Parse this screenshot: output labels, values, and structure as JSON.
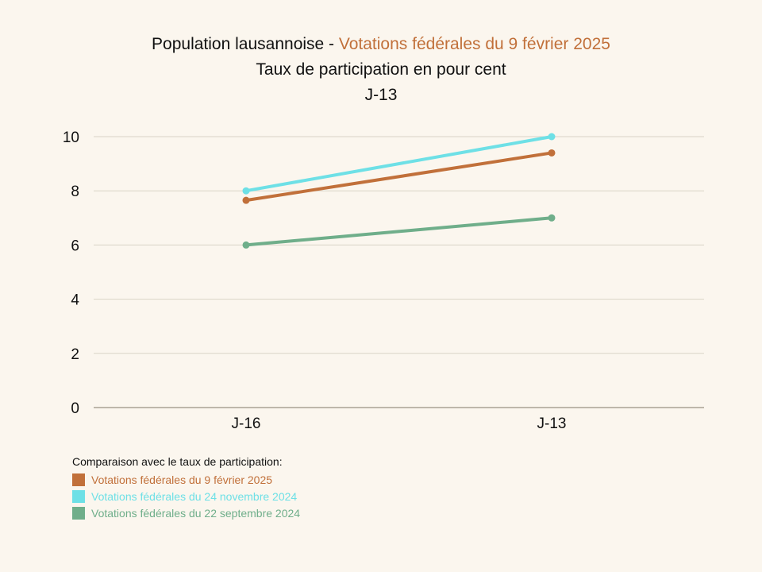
{
  "title": {
    "prefix": "Population lausannoise - ",
    "highlight": "Votations fédérales du 9 février 2025",
    "line2": "Taux de participation en pour cent",
    "line3": "J-13"
  },
  "chart_data": {
    "type": "line",
    "categories": [
      "J-16",
      "J-13"
    ],
    "ylim": [
      0,
      10
    ],
    "yticks": [
      0,
      2,
      4,
      6,
      8,
      10
    ],
    "grid": true,
    "series": [
      {
        "name": "Votations fédérales du 22 septembre 2024",
        "values": [
          6.0,
          7.0
        ],
        "color": "#6fae8a"
      },
      {
        "name": "Votations fédérales du 9 février 2025",
        "values": [
          7.65,
          9.4
        ],
        "color": "#c1703a"
      },
      {
        "name": "Votations fédérales du 24 novembre 2024",
        "values": [
          8.0,
          10.0
        ],
        "color": "#6ee0e6"
      }
    ]
  },
  "legend": {
    "heading": "Comparaison avec le taux de participation:",
    "placement": "bottom-left",
    "items": [
      {
        "label": "Votations fédérales du 9 février 2025",
        "color": "#c1703a"
      },
      {
        "label": "Votations fédérales du 24 novembre 2024",
        "color": "#6ee0e6"
      },
      {
        "label": "Votations fédérales du 22 septembre 2024",
        "color": "#6fae8a"
      }
    ]
  }
}
